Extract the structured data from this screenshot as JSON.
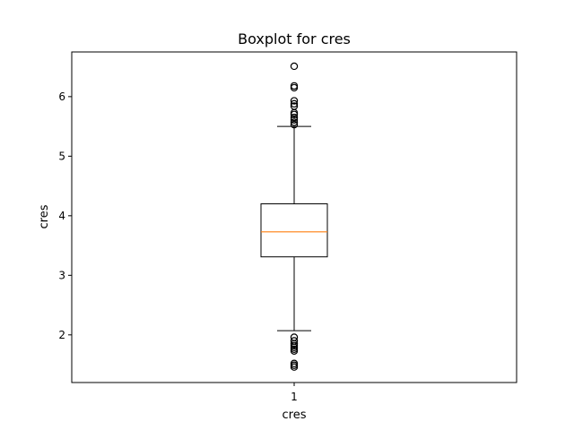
{
  "chart_data": {
    "type": "boxplot",
    "title": "Boxplot for cres",
    "xlabel": "cres",
    "ylabel": "cres",
    "categories": [
      "1"
    ],
    "ylim": [
      1.2,
      6.75
    ],
    "yticks": [
      2,
      3,
      4,
      5,
      6
    ],
    "grid": false,
    "legend": "none",
    "boxes": [
      {
        "category": "1",
        "whisker_low": 2.07,
        "q1": 3.31,
        "median": 3.73,
        "q3": 4.2,
        "whisker_high": 5.5,
        "outliers": [
          1.46,
          1.49,
          1.52,
          1.73,
          1.76,
          1.79,
          1.82,
          1.85,
          1.9,
          1.96,
          5.53,
          5.57,
          5.61,
          5.65,
          5.7,
          5.73,
          5.84,
          5.88,
          5.93,
          6.15,
          6.18,
          6.51
        ]
      }
    ],
    "colors": {
      "box": "#000000",
      "median": "#ff7f0e",
      "outlier": "#000000"
    }
  }
}
